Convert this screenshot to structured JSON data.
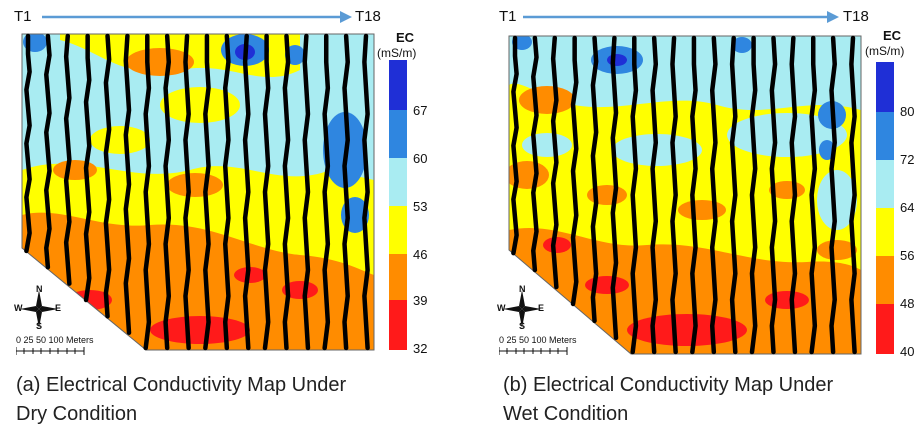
{
  "panels": [
    {
      "id": "a",
      "start_label": "T1",
      "end_label": "T18",
      "legend_title": "EC",
      "legend_unit": "(mS/m)",
      "legend_ticks": [
        "67",
        "60",
        "53",
        "46",
        "39",
        "32"
      ],
      "caption_line1": "(a) Electrical Conductivity Map Under",
      "caption_line2": "Dry Condition",
      "scale_label": "0   25  50         100 Meters",
      "compass": {
        "n": "N",
        "s": "S",
        "e": "E",
        "w": "W"
      }
    },
    {
      "id": "b",
      "start_label": "T1",
      "end_label": "T18",
      "legend_title": "EC",
      "legend_unit": "(mS/m)",
      "legend_ticks": [
        "80",
        "72",
        "64",
        "56",
        "48",
        "40"
      ],
      "caption_line1": "(b) Electrical Conductivity Map Under",
      "caption_line2": "Wet Condition",
      "scale_label": "0   25  50         100 Meters",
      "compass": {
        "n": "N",
        "s": "S",
        "e": "E",
        "w": "W"
      }
    }
  ],
  "legend_colors": [
    "#1f2fd6",
    "#2f86e0",
    "#a9ecf2",
    "#ffff00",
    "#ff8c00",
    "#ff1a1a"
  ],
  "transect_color": "#000000",
  "arrow_color": "#5b9bd5"
}
